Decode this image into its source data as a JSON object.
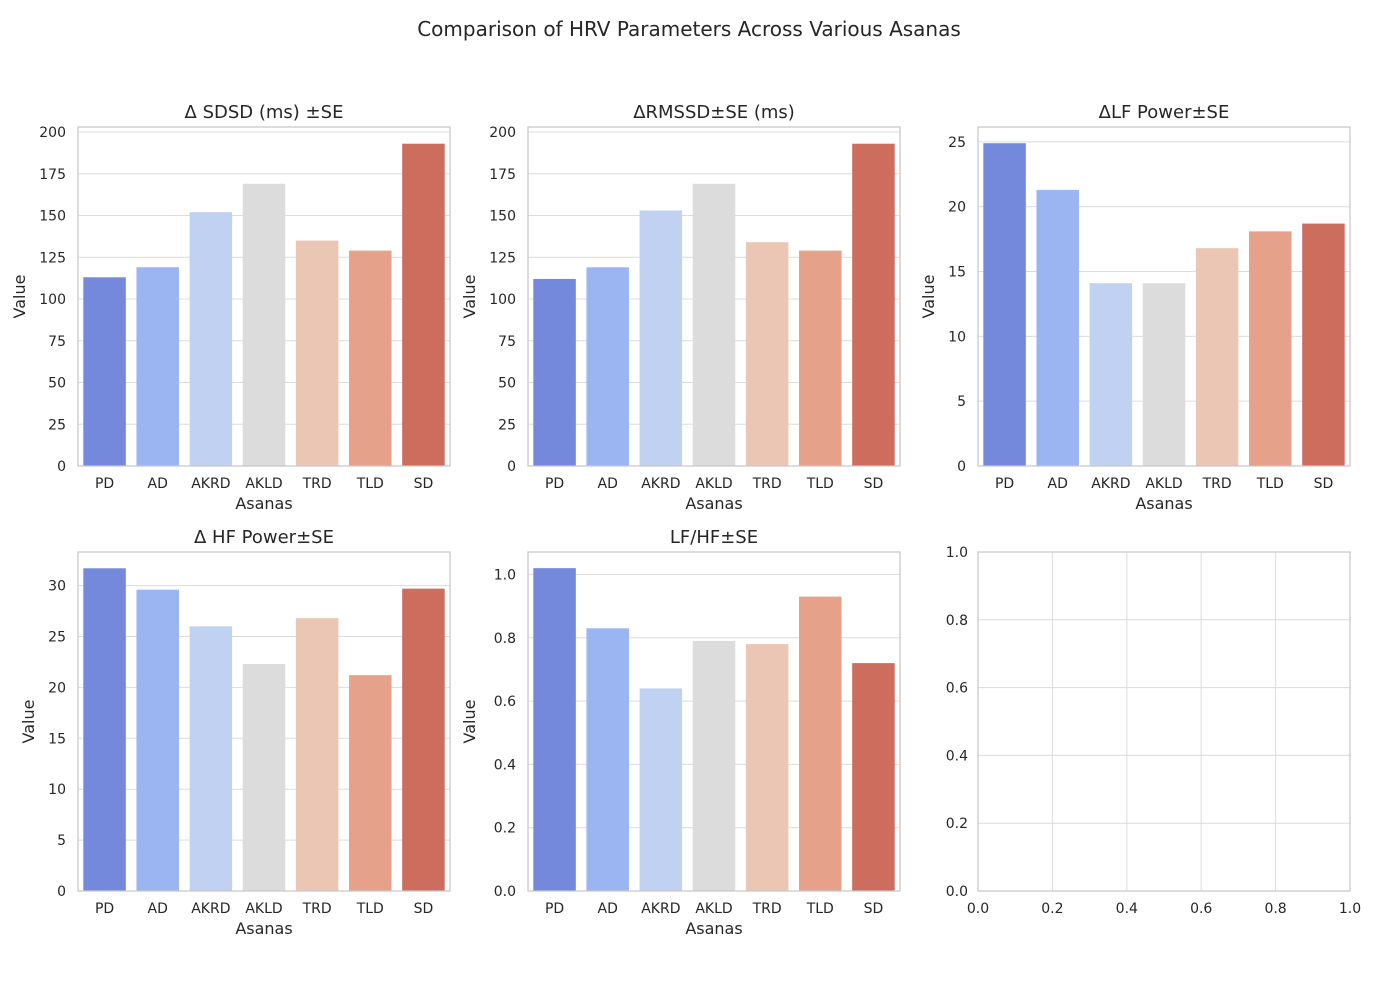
{
  "figure": {
    "title": "Comparison of HRV Parameters Across Various Asanas"
  },
  "chart_data": [
    {
      "type": "bar",
      "title": "Δ SDSD (ms) ±SE",
      "xlabel": "Asanas",
      "ylabel": "Value",
      "categories": [
        "PD",
        "AD",
        "AKRD",
        "AKLD",
        "TRD",
        "TLD",
        "SD"
      ],
      "values": [
        113,
        119,
        152,
        169,
        135,
        129,
        193
      ],
      "ylim": [
        0,
        203
      ],
      "yticks": [
        0,
        25,
        50,
        75,
        100,
        125,
        150,
        175,
        200
      ],
      "grid": true,
      "colors": [
        "#7489dc",
        "#9bb5f2",
        "#c0d1f1",
        "#dcdcdc",
        "#ecc6b4",
        "#e5a18a",
        "#cd6d5e"
      ]
    },
    {
      "type": "bar",
      "title": "ΔRMSSD±SE (ms)",
      "xlabel": "Asanas",
      "ylabel": "Value",
      "categories": [
        "PD",
        "AD",
        "AKRD",
        "AKLD",
        "TRD",
        "TLD",
        "SD"
      ],
      "values": [
        112,
        119,
        153,
        169,
        134,
        129,
        193
      ],
      "ylim": [
        0,
        203
      ],
      "yticks": [
        0,
        25,
        50,
        75,
        100,
        125,
        150,
        175,
        200
      ],
      "grid": true,
      "colors": [
        "#7489dc",
        "#9bb5f2",
        "#c0d1f1",
        "#dcdcdc",
        "#ecc6b4",
        "#e5a18a",
        "#cd6d5e"
      ]
    },
    {
      "type": "bar",
      "title": "ΔLF Power±SE",
      "xlabel": "Asanas",
      "ylabel": "Value",
      "categories": [
        "PD",
        "AD",
        "AKRD",
        "AKLD",
        "TRD",
        "TLD",
        "SD"
      ],
      "values": [
        24.9,
        21.3,
        14.1,
        14.1,
        16.8,
        18.1,
        18.7
      ],
      "ylim": [
        0,
        26.15
      ],
      "yticks": [
        0,
        5,
        10,
        15,
        20,
        25
      ],
      "grid": true,
      "colors": [
        "#7489dc",
        "#9bb5f2",
        "#c0d1f1",
        "#dcdcdc",
        "#ecc6b4",
        "#e5a18a",
        "#cd6d5e"
      ]
    },
    {
      "type": "bar",
      "title": "Δ HF Power±SE",
      "xlabel": "Asanas",
      "ylabel": "Value",
      "categories": [
        "PD",
        "AD",
        "AKRD",
        "AKLD",
        "TRD",
        "TLD",
        "SD"
      ],
      "values": [
        31.7,
        29.6,
        26.0,
        22.3,
        26.8,
        21.2,
        29.7
      ],
      "ylim": [
        0,
        33.3
      ],
      "yticks": [
        0,
        5,
        10,
        15,
        20,
        25,
        30
      ],
      "grid": true,
      "colors": [
        "#7489dc",
        "#9bb5f2",
        "#c0d1f1",
        "#dcdcdc",
        "#ecc6b4",
        "#e5a18a",
        "#cd6d5e"
      ]
    },
    {
      "type": "bar",
      "title": "LF/HF±SE",
      "xlabel": "Asanas",
      "ylabel": "Value",
      "categories": [
        "PD",
        "AD",
        "AKRD",
        "AKLD",
        "TRD",
        "TLD",
        "SD"
      ],
      "values": [
        1.02,
        0.83,
        0.64,
        0.79,
        0.78,
        0.93,
        0.72
      ],
      "ylim": [
        0,
        1.071
      ],
      "yticks": [
        "0.0",
        "0.2",
        "0.4",
        "0.6",
        "0.8",
        "1.0"
      ],
      "grid": true,
      "colors": [
        "#7489dc",
        "#9bb5f2",
        "#c0d1f1",
        "#dcdcdc",
        "#ecc6b4",
        "#e5a18a",
        "#cd6d5e"
      ]
    },
    {
      "type": "empty",
      "xlim": [
        0,
        1
      ],
      "ylim": [
        0,
        1
      ],
      "xticks": [
        "0.0",
        "0.2",
        "0.4",
        "0.6",
        "0.8",
        "1.0"
      ],
      "yticks": [
        "0.0",
        "0.2",
        "0.4",
        "0.6",
        "0.8",
        "1.0"
      ],
      "grid": true
    }
  ]
}
